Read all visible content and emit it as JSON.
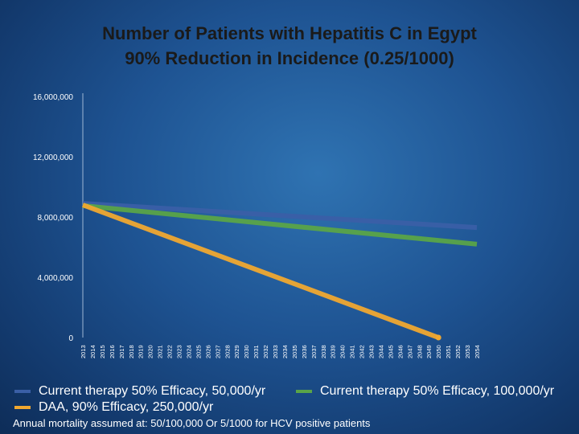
{
  "title_line1": "Number of Patients with Hepatitis C in Egypt",
  "title_line2": "90% Reduction in Incidence (0.25/1000)",
  "note": "Annual mortality assumed at: 50/100,000 Or 5/1000 for HCV positive patients",
  "chart_data": {
    "type": "line",
    "x": [
      2013,
      2014,
      2015,
      2016,
      2017,
      2018,
      2019,
      2020,
      2021,
      2022,
      2023,
      2024,
      2025,
      2026,
      2027,
      2028,
      2029,
      2030,
      2031,
      2032,
      2033,
      2034,
      2035,
      2036,
      2037,
      2038,
      2039,
      2040,
      2041,
      2042,
      2043,
      2044,
      2045,
      2046,
      2047,
      2048,
      2049,
      2050,
      2051,
      2052,
      2053,
      2054
    ],
    "x_tick_labels": [
      "2013",
      "2014",
      "2015",
      "2016",
      "2017",
      "2018",
      "2019",
      "2020",
      "2021",
      "2022",
      "2023",
      "2024",
      "2025",
      "2026",
      "2027",
      "2028",
      "2029",
      "2030",
      "2031",
      "2032",
      "2033",
      "2034",
      "2035",
      "2036",
      "2037",
      "2038",
      "2039",
      "2040",
      "2041",
      "2042",
      "2043",
      "2044",
      "2045",
      "2046",
      "2047",
      "2048",
      "2049",
      "2050",
      "2051",
      "2052",
      "2053",
      "2054"
    ],
    "y_ticks": [
      {
        "value": 0,
        "label": "0"
      },
      {
        "value": 4000000,
        "label": "4,000,000"
      },
      {
        "value": 8000000,
        "label": "8,000,000"
      },
      {
        "value": 12000000,
        "label": "12,000,000"
      },
      {
        "value": 16000000,
        "label": "16,000,000"
      }
    ],
    "ylim": [
      0,
      16000000
    ],
    "xlim": [
      2013,
      2054
    ],
    "series": [
      {
        "name": "Current therapy 50% Efficacy, 50,000/yr",
        "color": "#3a5fa6",
        "points": [
          [
            2013,
            8900000
          ],
          [
            2054,
            7300000
          ]
        ]
      },
      {
        "name": "Current therapy 50% Efficacy, 100,000/yr",
        "color": "#5aa448",
        "points": [
          [
            2013,
            8750000
          ],
          [
            2054,
            6200000
          ]
        ]
      },
      {
        "name": "DAA, 90% Efficacy, 250,000/yr",
        "color": "#f0a830",
        "points": [
          [
            2013,
            8800000
          ],
          [
            2050,
            0
          ]
        ]
      }
    ],
    "grid": false,
    "legend_position": "bottom"
  }
}
